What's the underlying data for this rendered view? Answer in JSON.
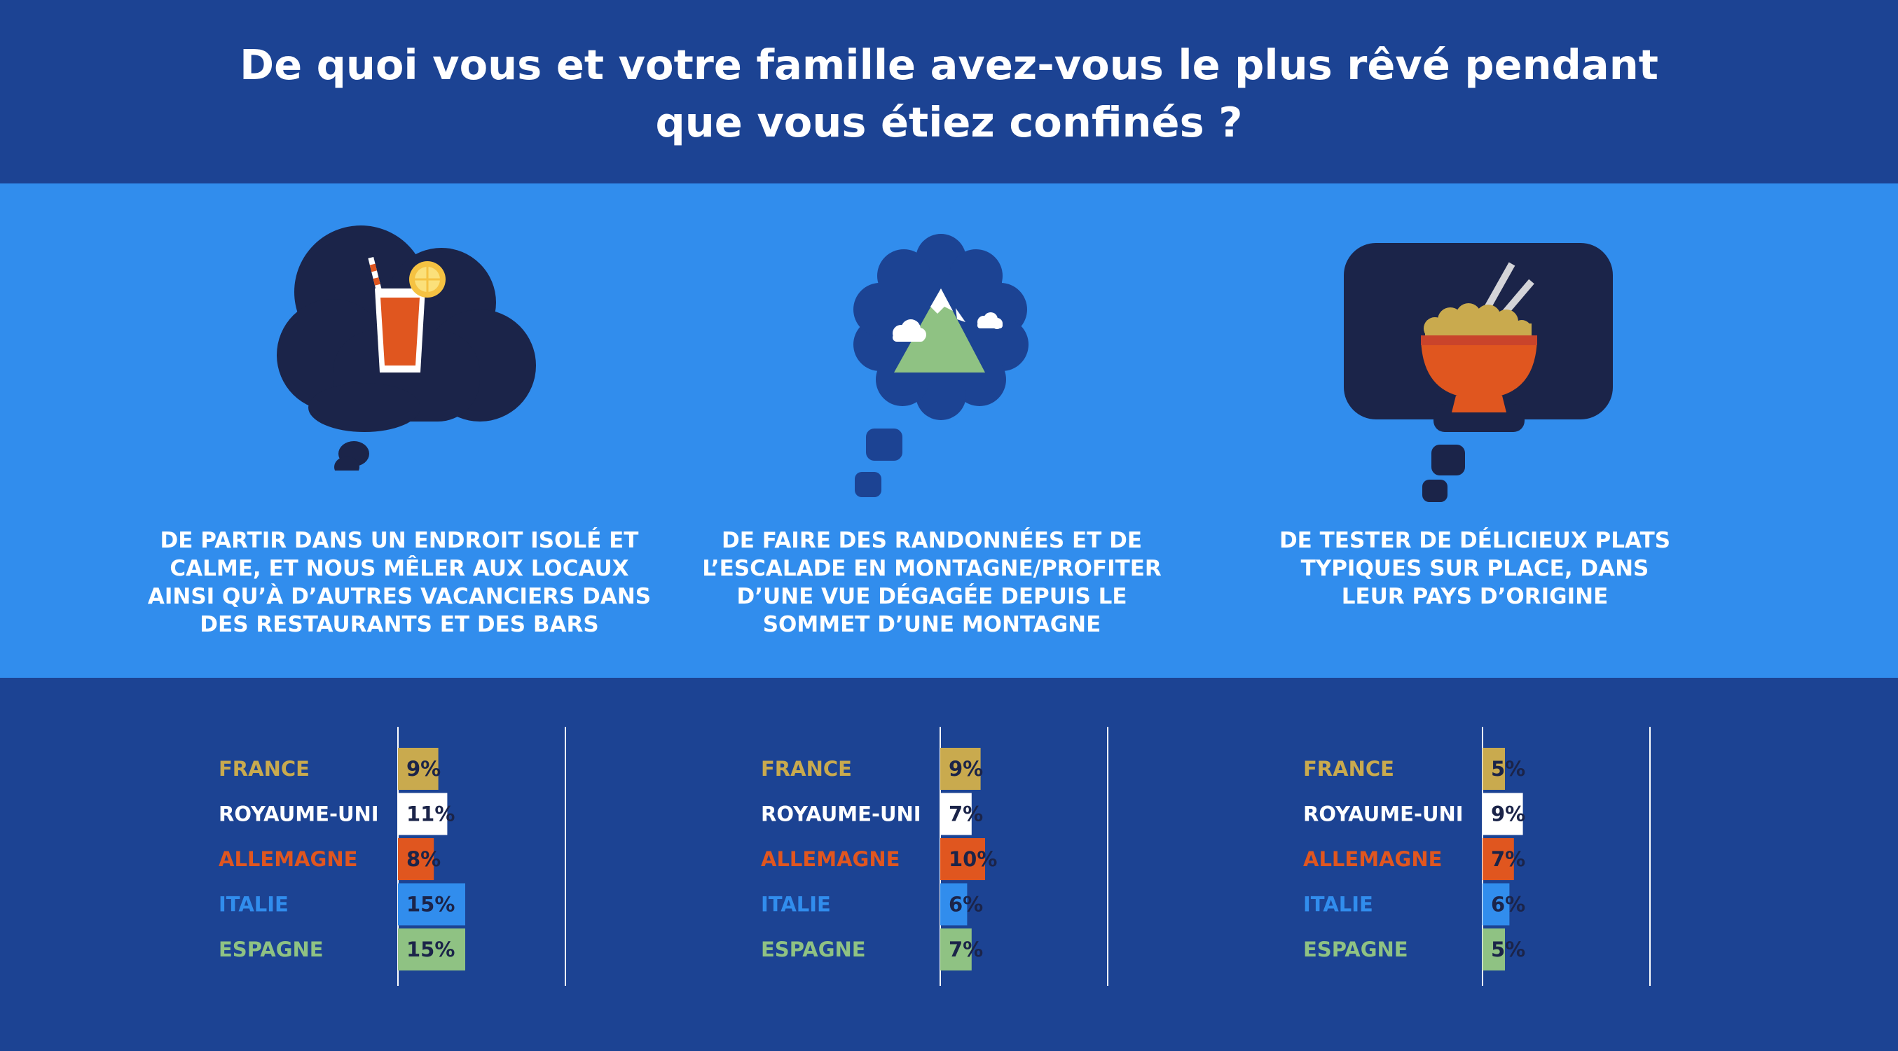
{
  "header": {
    "title_line1": "De quoi vous et votre famille avez-vous le plus rêvé pendant",
    "title_line2": "que vous étiez confinés ?"
  },
  "themes": [
    {
      "icon": "drink-icon",
      "caption_lines": [
        "DE PARTIR DANS UN ENDROIT ISOLÉ ET",
        "CALME, ET NOUS MÊLER AUX LOCAUX",
        "AINSI QU’À D’AUTRES VACANCIERS DANS",
        "DES RESTAURANTS ET DES BARS"
      ]
    },
    {
      "icon": "mountain-icon",
      "caption_lines": [
        "DE FAIRE DES RANDONNÉES ET DE",
        "L’ESCALADE EN MONTAGNE/PROFITER",
        "D’UNE VUE DÉGAGÉE DEPUIS LE",
        "SOMMET D’UNE MONTAGNE"
      ]
    },
    {
      "icon": "food-bowl-icon",
      "caption_lines": [
        "DE TESTER DE DÉLICIEUX PLATS",
        "TYPIQUES SUR PLACE, DANS",
        "LEUR PAYS D’ORIGINE"
      ]
    }
  ],
  "colors": {
    "FRANCE": "#c9aa4e",
    "ROYAUME-UNI": "#ffffff",
    "ALLEMAGNE": "#e0561f",
    "ITALIE": "#318ded",
    "ESPAGNE": "#8fc283",
    "bar_text": "#1b2449",
    "header_bg": "#1c4393",
    "band_bg": "#318ded",
    "cloud": "#1b2449"
  },
  "chart_data": [
    {
      "type": "bar",
      "orientation": "horizontal",
      "categories": [
        "FRANCE",
        "ROYAUME-UNI",
        "ALLEMAGNE",
        "ITALIE",
        "ESPAGNE"
      ],
      "values": [
        9,
        11,
        8,
        15,
        15
      ],
      "value_labels": [
        "9%",
        "11%",
        "8%",
        "15%",
        "15%"
      ],
      "xlim": [
        0,
        22
      ],
      "grid": false
    },
    {
      "type": "bar",
      "orientation": "horizontal",
      "categories": [
        "FRANCE",
        "ROYAUME-UNI",
        "ALLEMAGNE",
        "ITALIE",
        "ESPAGNE"
      ],
      "values": [
        9,
        7,
        10,
        6,
        7
      ],
      "value_labels": [
        "9%",
        "7%",
        "10%",
        "6%",
        "7%"
      ],
      "xlim": [
        0,
        22
      ],
      "grid": false
    },
    {
      "type": "bar",
      "orientation": "horizontal",
      "categories": [
        "FRANCE",
        "ROYAUME-UNI",
        "ALLEMAGNE",
        "ITALIE",
        "ESPAGNE"
      ],
      "values": [
        5,
        9,
        7,
        6,
        5
      ],
      "value_labels": [
        "5%",
        "9%",
        "7%",
        "6%",
        "5%"
      ],
      "xlim": [
        0,
        22
      ],
      "grid": false
    }
  ]
}
